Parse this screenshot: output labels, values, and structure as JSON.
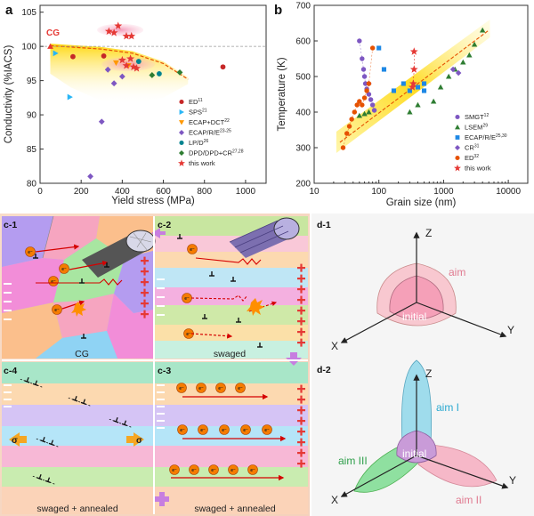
{
  "panel_a": {
    "label": "a",
    "cg_label": "CG",
    "legend": [
      {
        "name": "ED",
        "ref": "11"
      },
      {
        "name": "SPS",
        "ref": "21"
      },
      {
        "name": "ECAP+DCT",
        "ref": "22"
      },
      {
        "name": "ECAP/R/E",
        "ref": "23-25"
      },
      {
        "name": "LP/D",
        "ref": "26"
      },
      {
        "name": "DPD/DPD+CR",
        "ref": "27,28"
      },
      {
        "name": "this work",
        "ref": ""
      }
    ]
  },
  "panel_b": {
    "label": "b",
    "legend": [
      {
        "name": "SMGT",
        "ref": "12"
      },
      {
        "name": "LSEM",
        "ref": "29"
      },
      {
        "name": "ECAP/R/E",
        "ref": "25,30"
      },
      {
        "name": "CR",
        "ref": "31"
      },
      {
        "name": "ED",
        "ref": "32"
      },
      {
        "name": "this work",
        "ref": ""
      }
    ]
  },
  "chart_data": [
    {
      "type": "scatter",
      "panel": "a",
      "xlabel": "Yield stress (MPa)",
      "ylabel": "Conductivity (%IACS)",
      "xlim": [
        0,
        1100
      ],
      "ylim": [
        80,
        106
      ],
      "xticks": [
        0,
        200,
        400,
        600,
        800,
        1000
      ],
      "yticks": [
        80,
        85,
        90,
        95,
        100,
        105
      ],
      "reference_line_y": 100,
      "series": [
        {
          "name": "ED",
          "color": "#c62828",
          "marker": "circle",
          "points": [
            [
              160,
              98.5
            ],
            [
              310,
              98.6
            ],
            [
              890,
              97.0
            ]
          ]
        },
        {
          "name": "SPS",
          "color": "#29b6f6",
          "marker": "triangle-right",
          "points": [
            [
              75,
              99.0
            ],
            [
              145,
              92.6
            ]
          ]
        },
        {
          "name": "ECAP+DCT",
          "color": "#ff9800",
          "marker": "triangle-down",
          "points": [
            [
              370,
              97.6
            ],
            [
              430,
              97.2
            ]
          ]
        },
        {
          "name": "ECAP/R/E",
          "color": "#7e57c2",
          "marker": "diamond",
          "points": [
            [
              245,
              81.0
            ],
            [
              300,
              89.0
            ],
            [
              360,
              94.6
            ],
            [
              330,
              96.6
            ],
            [
              400,
              95.6
            ]
          ]
        },
        {
          "name": "LP/D",
          "color": "#00838f",
          "marker": "circle",
          "points": [
            [
              580,
              96.0
            ],
            [
              480,
              97.8
            ]
          ]
        },
        {
          "name": "DPD/DPD+CR",
          "color": "#2e7d32",
          "marker": "diamond",
          "points": [
            [
              545,
              95.8
            ],
            [
              680,
              96.2
            ]
          ]
        },
        {
          "name": "this work",
          "color": "#e53935",
          "marker": "star",
          "points": [
            [
              380,
              103.0
            ],
            [
              335,
              102.2
            ],
            [
              360,
              102.0
            ],
            [
              420,
              101.5
            ],
            [
              445,
              101.5
            ],
            [
              400,
              98.0
            ],
            [
              440,
              98.2
            ],
            [
              455,
              97.0
            ],
            [
              420,
              97.2
            ],
            [
              470,
              96.8
            ]
          ]
        },
        {
          "name": "CG",
          "color": "#e53935",
          "marker": "triangle-up",
          "points": [
            [
              50,
              100.0
            ]
          ]
        }
      ]
    },
    {
      "type": "scatter",
      "panel": "b",
      "xlabel": "Grain size (nm)",
      "ylabel": "Temperature (K)",
      "xscale": "log",
      "xlim": [
        10,
        20000
      ],
      "ylim": [
        200,
        700
      ],
      "xticks": [
        10,
        100,
        1000,
        10000
      ],
      "yticks": [
        200,
        300,
        400,
        500,
        600,
        700
      ],
      "series": [
        {
          "name": "SMGT",
          "color": "#7e57c2",
          "marker": "circle",
          "points": [
            [
              50,
              600
            ],
            [
              55,
              550
            ],
            [
              58,
              520
            ],
            [
              60,
              500
            ],
            [
              62,
              480
            ],
            [
              65,
              465
            ],
            [
              70,
              450
            ],
            [
              75,
              435
            ],
            [
              80,
              420
            ],
            [
              85,
              405
            ]
          ]
        },
        {
          "name": "LSEM",
          "color": "#2e7d32",
          "marker": "triangle-up",
          "points": [
            [
              50,
              390
            ],
            [
              60,
              395
            ],
            [
              70,
              400
            ],
            [
              300,
              400
            ],
            [
              400,
              420
            ],
            [
              700,
              430
            ],
            [
              900,
              470
            ],
            [
              1200,
              500
            ],
            [
              1500,
              520
            ],
            [
              2000,
              540
            ],
            [
              2500,
              560
            ],
            [
              3000,
              590
            ],
            [
              4000,
              630
            ]
          ]
        },
        {
          "name": "ECAP/R/E",
          "color": "#1e88e5",
          "marker": "square",
          "points": [
            [
              100,
              580
            ],
            [
              120,
              520
            ],
            [
              170,
              460
            ],
            [
              240,
              480
            ],
            [
              300,
              460
            ],
            [
              400,
              470
            ],
            [
              500,
              480
            ],
            [
              500,
              460
            ]
          ]
        },
        {
          "name": "CR",
          "color": "#7e57c2",
          "marker": "diamond",
          "points": [
            [
              70,
              480
            ],
            [
              1400,
              520
            ],
            [
              1700,
              510
            ]
          ]
        },
        {
          "name": "ED",
          "color": "#e65100",
          "marker": "circle",
          "points": [
            [
              28,
              300
            ],
            [
              32,
              340
            ],
            [
              35,
              360
            ],
            [
              38,
              380
            ],
            [
              42,
              400
            ],
            [
              46,
              420
            ],
            [
              50,
              430
            ],
            [
              55,
              420
            ],
            [
              60,
              440
            ],
            [
              65,
              460
            ],
            [
              70,
              480
            ],
            [
              80,
              580
            ]
          ]
        },
        {
          "name": "this work",
          "color": "#e53935",
          "marker": "star",
          "points": [
            [
              350,
              570
            ],
            [
              350,
              520
            ],
            [
              340,
              480
            ],
            [
              330,
              470
            ]
          ]
        }
      ]
    }
  ],
  "panel_c": {
    "c1": {
      "tag": "c-1",
      "footer": "CG"
    },
    "c2": {
      "tag": "c-2",
      "footer": "swaged"
    },
    "c3": {
      "tag": "c-3",
      "footer": "swaged + annealed"
    },
    "c4": {
      "tag": "c-4",
      "footer": "swaged + annealed"
    },
    "sigma": "σ",
    "electron": "e⁻"
  },
  "panel_d": {
    "d1": {
      "tag": "d-1",
      "aim": "aim",
      "initial": "initial"
    },
    "d2": {
      "tag": "d-2",
      "aim_1": "aim I",
      "aim_2": "aim II",
      "aim_3": "aim III",
      "initial": "initial"
    },
    "axes": {
      "x": "X",
      "y": "Y",
      "z": "Z"
    }
  }
}
